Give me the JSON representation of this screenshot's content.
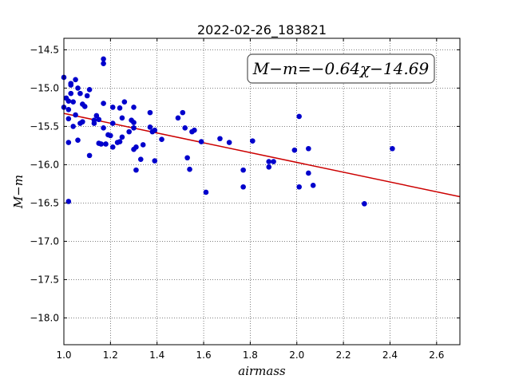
{
  "chart_data": {
    "type": "scatter",
    "title": "2022-02-26_183821",
    "xlabel": "airmass",
    "ylabel": "M−m",
    "xlim": [
      1.0,
      2.7
    ],
    "ylim": [
      -18.35,
      -14.35
    ],
    "y_inverted": true,
    "grid": true,
    "xticks": [
      1.0,
      1.2,
      1.4,
      1.6,
      1.8,
      2.0,
      2.2,
      2.4,
      2.6
    ],
    "xtick_labels": [
      "1.0",
      "1.2",
      "1.4",
      "1.6",
      "1.8",
      "2.0",
      "2.2",
      "2.4",
      "2.6"
    ],
    "yticks": [
      -14.5,
      -15.0,
      -15.5,
      -16.0,
      -16.5,
      -17.0,
      -17.5,
      -18.0
    ],
    "ytick_labels": [
      "−14.5",
      "−15.0",
      "−15.5",
      "−16.0",
      "−16.5",
      "−17.0",
      "−17.5",
      "−18.0"
    ],
    "annotation": "M−m=−0.64χ−14.69",
    "fit": {
      "slope": -0.64,
      "intercept": -14.69,
      "color": "#cc0000"
    },
    "marker_color": "#0000cc",
    "points": [
      [
        1.0,
        -14.86
      ],
      [
        1.01,
        -15.13
      ],
      [
        1.0,
        -15.25
      ],
      [
        1.02,
        -15.28
      ],
      [
        1.02,
        -15.17
      ],
      [
        1.03,
        -14.96
      ],
      [
        1.03,
        -14.94
      ],
      [
        1.04,
        -15.18
      ],
      [
        1.03,
        -15.07
      ],
      [
        1.05,
        -14.89
      ],
      [
        1.02,
        -15.4
      ],
      [
        1.04,
        -15.5
      ],
      [
        1.05,
        -15.35
      ],
      [
        1.06,
        -15.0
      ],
      [
        1.07,
        -15.07
      ],
      [
        1.07,
        -15.46
      ],
      [
        1.08,
        -15.44
      ],
      [
        1.08,
        -15.21
      ],
      [
        1.09,
        -15.24
      ],
      [
        1.1,
        -15.1
      ],
      [
        1.11,
        -15.02
      ],
      [
        1.02,
        -15.71
      ],
      [
        1.06,
        -15.68
      ],
      [
        1.11,
        -15.88
      ],
      [
        1.13,
        -15.46
      ],
      [
        1.13,
        -15.42
      ],
      [
        1.14,
        -15.36
      ],
      [
        1.15,
        -15.41
      ],
      [
        1.15,
        -15.72
      ],
      [
        1.16,
        -15.73
      ],
      [
        1.17,
        -14.62
      ],
      [
        1.17,
        -14.68
      ],
      [
        1.17,
        -15.2
      ],
      [
        1.17,
        -15.52
      ],
      [
        1.18,
        -15.73
      ],
      [
        1.19,
        -15.61
      ],
      [
        1.2,
        -15.62
      ],
      [
        1.21,
        -15.77
      ],
      [
        1.21,
        -15.25
      ],
      [
        1.21,
        -15.46
      ],
      [
        1.23,
        -15.71
      ],
      [
        1.24,
        -15.7
      ],
      [
        1.24,
        -15.26
      ],
      [
        1.25,
        -15.64
      ],
      [
        1.25,
        -15.39
      ],
      [
        1.26,
        -15.18
      ],
      [
        1.28,
        -15.57
      ],
      [
        1.29,
        -15.42
      ],
      [
        1.3,
        -15.45
      ],
      [
        1.3,
        -15.25
      ],
      [
        1.3,
        -15.52
      ],
      [
        1.3,
        -15.8
      ],
      [
        1.31,
        -15.77
      ],
      [
        1.31,
        -16.07
      ],
      [
        1.33,
        -15.93
      ],
      [
        1.34,
        -15.74
      ],
      [
        1.37,
        -15.32
      ],
      [
        1.37,
        -15.51
      ],
      [
        1.38,
        -15.57
      ],
      [
        1.39,
        -15.55
      ],
      [
        1.39,
        -15.95
      ],
      [
        1.42,
        -15.67
      ],
      [
        1.49,
        -15.39
      ],
      [
        1.51,
        -15.32
      ],
      [
        1.52,
        -15.52
      ],
      [
        1.53,
        -15.91
      ],
      [
        1.54,
        -16.06
      ],
      [
        1.55,
        -15.57
      ],
      [
        1.56,
        -15.55
      ],
      [
        1.59,
        -15.7
      ],
      [
        1.61,
        -16.36
      ],
      [
        1.67,
        -15.66
      ],
      [
        1.71,
        -15.71
      ],
      [
        1.77,
        -16.07
      ],
      [
        1.77,
        -16.29
      ],
      [
        1.81,
        -15.69
      ],
      [
        1.88,
        -15.96
      ],
      [
        1.88,
        -16.03
      ],
      [
        1.9,
        -15.96
      ],
      [
        1.99,
        -15.81
      ],
      [
        2.01,
        -15.37
      ],
      [
        2.01,
        -16.29
      ],
      [
        2.05,
        -15.79
      ],
      [
        2.05,
        -16.11
      ],
      [
        2.07,
        -16.27
      ],
      [
        2.29,
        -16.51
      ],
      [
        2.41,
        -15.79
      ],
      [
        1.02,
        -16.48
      ]
    ]
  }
}
